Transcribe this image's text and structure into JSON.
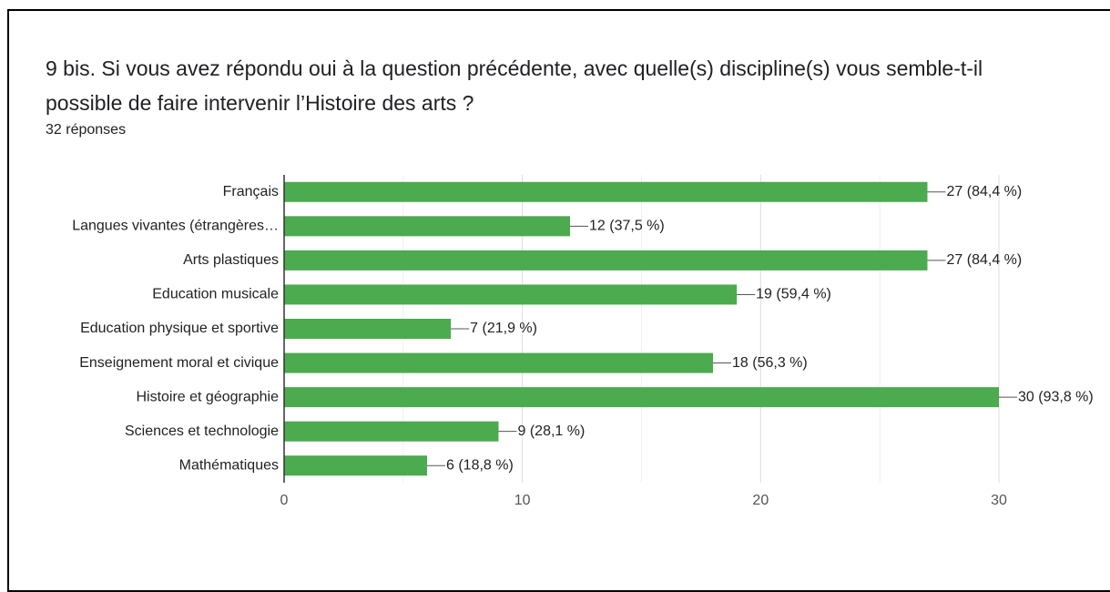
{
  "chart_data": {
    "type": "hbar",
    "title": "9 bis. Si vous avez répondu oui à la question précédente, avec quelle(s) discipline(s) vous semble-t-il possible de faire intervenir l’Histoire des arts ?",
    "subtitle": "32 réponses",
    "categories": [
      "Français",
      "Langues vivantes (étrangères…",
      "Arts plastiques",
      "Education musicale",
      "Education physique et sportive",
      "Enseignement moral et civique",
      "Histoire et géographie",
      "Sciences et technologie",
      "Mathématiques"
    ],
    "values": [
      27,
      12,
      27,
      19,
      7,
      18,
      30,
      9,
      6
    ],
    "value_labels": [
      "27 (84,4 %)",
      "12 (37,5 %)",
      "27 (84,4 %)",
      "19 (59,4 %)",
      "7 (21,9 %)",
      "18 (56,3 %)",
      "30 (93,8 %)",
      "9 (28,1 %)",
      "6 (18,8 %)"
    ],
    "color": "#4caa4f",
    "xlim": [
      0,
      30
    ],
    "xticks": [
      0,
      10,
      20,
      30
    ],
    "minor_xticks": [
      5,
      15,
      25
    ],
    "grid": true
  }
}
